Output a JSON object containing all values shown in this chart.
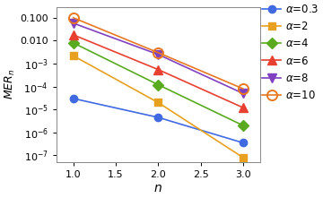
{
  "n": [
    1,
    2,
    3
  ],
  "series": [
    {
      "label": "$\\alpha$=0.3",
      "color": "#4169E1",
      "marker": "o",
      "values": [
        3e-05,
        4.5e-06,
        3.5e-07
      ],
      "markersize": 6,
      "fillstyle": "full"
    },
    {
      "label": "$\\alpha$=2",
      "color": "#E8A020",
      "marker": "s",
      "values": [
        0.0022,
        2e-05,
        8e-08
      ],
      "markersize": 6,
      "fillstyle": "full"
    },
    {
      "label": "$\\alpha$=4",
      "color": "#5AAA20",
      "marker": "D",
      "values": [
        0.008,
        0.00012,
        2e-06
      ],
      "markersize": 6,
      "fillstyle": "full"
    },
    {
      "label": "$\\alpha$=6",
      "color": "#E84030",
      "marker": "^",
      "values": [
        0.018,
        0.00055,
        1.2e-05
      ],
      "markersize": 7,
      "fillstyle": "full"
    },
    {
      "label": "$\\alpha$=8",
      "color": "#8040C0",
      "marker": "v",
      "values": [
        0.058,
        0.0025,
        5e-05
      ],
      "markersize": 7,
      "fillstyle": "full"
    },
    {
      "label": "$\\alpha$=10",
      "color": "#E87820",
      "marker": "o",
      "values": [
        0.1,
        0.003,
        8e-05
      ],
      "markersize": 8,
      "fillstyle": "none"
    }
  ],
  "ylabel": "$MER_n$",
  "xlabel": "$n$",
  "xlim": [
    0.8,
    3.2
  ],
  "ylim": [
    5e-08,
    0.3
  ],
  "xticks": [
    1.0,
    1.5,
    2.0,
    2.5,
    3.0
  ],
  "yticks": [
    1e-07,
    1e-06,
    1e-05,
    0.0001,
    0.001,
    0.01,
    0.1
  ],
  "ytick_labels": [
    "$10^{-7}$",
    "$10^{-6}$",
    "$10^{-5}$",
    "$10^{-4}$",
    "$10^{-3}$",
    "0.010",
    "0.100"
  ]
}
